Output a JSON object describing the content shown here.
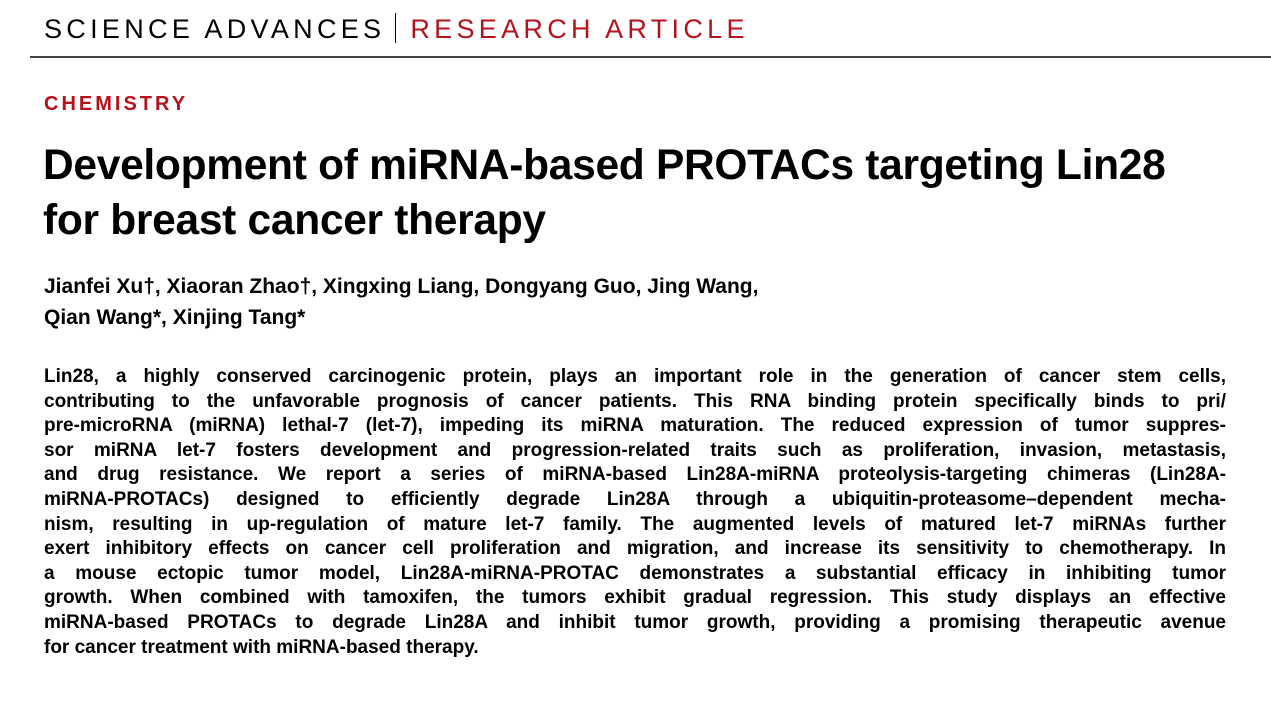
{
  "header": {
    "journal": "SCIENCE ADVANCES",
    "article_type": "RESEARCH ARTICLE"
  },
  "section": "CHEMISTRY",
  "title_lines": [
    "Development of miRNA-based PROTACs targeting Lin28",
    "for breast cancer therapy"
  ],
  "author_lines": [
    "Jianfei Xu†, Xiaoran Zhao†, Xingxing Liang, Dongyang Guo, Jing Wang,",
    "Qian Wang*, Xinjing Tang*"
  ],
  "abstract_lines": [
    "Lin28, a highly conserved carcinogenic protein, plays an important role in the generation of cancer stem cells,",
    "contributing to the unfavorable prognosis of cancer patients. This RNA binding protein specifically binds to pri/",
    "pre-microRNA (miRNA) lethal-7 (let-7), impeding its miRNA maturation. The reduced expression of tumor suppres-",
    "sor miRNA let-7 fosters development and progression-related traits such as proliferation, invasion, metastasis,",
    "and drug resistance. We report a series of miRNA-based Lin28A-miRNA proteolysis-targeting chimeras (Lin28A-",
    "miRNA-PROTACs) designed to efficiently degrade Lin28A through a ubiquitin-proteasome–dependent mecha-",
    "nism, resulting in up-regulation of mature let-7 family. The augmented levels of matured let-7 miRNAs further",
    "exert inhibitory effects on cancer cell proliferation and migration, and increase its sensitivity to chemotherapy. In",
    "a mouse ectopic tumor model, Lin28A-miRNA-PROTAC demonstrates a substantial efficacy in inhibiting tumor",
    "growth. When combined with tamoxifen, the tumors exhibit gradual regression. This study displays an effective",
    "miRNA-based PROTACs to degrade Lin28A and inhibit tumor growth, providing a promising therapeutic avenue",
    "for cancer treatment with miRNA-based therapy."
  ],
  "colors": {
    "accent": "#b5121b"
  }
}
